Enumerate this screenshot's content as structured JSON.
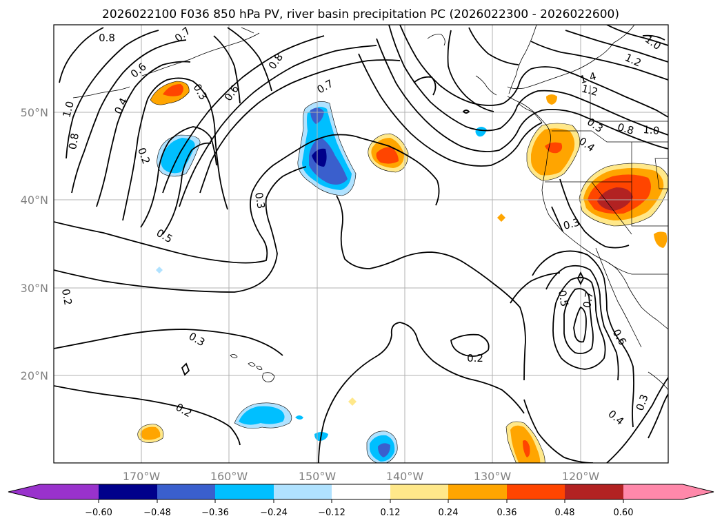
{
  "chart_data": {
    "type": "contour_map",
    "title": "2026022100 F036 850 hPa PV, river basin precipitation PC (2026022300 - 2026022600)",
    "map": {
      "lon_range": [
        -180,
        -110
      ],
      "lat_range": [
        10,
        60
      ],
      "lat_ticks": [
        {
          "value": 20,
          "label": "20°N"
        },
        {
          "value": 30,
          "label": "30°N"
        },
        {
          "value": 40,
          "label": "40°N"
        },
        {
          "value": 50,
          "label": "50°N"
        }
      ],
      "lon_ticks": [
        {
          "value": -170,
          "label": "170°W"
        },
        {
          "value": -160,
          "label": "160°W"
        },
        {
          "value": -150,
          "label": "150°W"
        },
        {
          "value": -140,
          "label": "140°W"
        },
        {
          "value": -130,
          "label": "130°W"
        },
        {
          "value": -120,
          "label": "120°W"
        }
      ]
    },
    "colorbar": {
      "levels": [
        -0.6,
        -0.48,
        -0.36,
        -0.24,
        -0.12,
        0.12,
        0.24,
        0.36,
        0.48,
        0.6
      ],
      "tick_labels": [
        "−0.60",
        "−0.48",
        "−0.36",
        "−0.24",
        "−0.12",
        "0.12",
        "0.24",
        "0.36",
        "0.48",
        "0.60"
      ],
      "colors": [
        "#9932cc",
        "#00008b",
        "#3a5fcd",
        "#00bfff",
        "#b0e2ff",
        "#ffffff",
        "#ffe88a",
        "#ffa500",
        "#ff4500",
        "#b22222",
        "#ff88aa"
      ],
      "extend": "both"
    },
    "contour_labels": [
      "0.8",
      "0.7",
      "0.6",
      "0.3",
      "0.8",
      "0.6",
      "1.0",
      "0.4",
      "0.8",
      "0.2",
      "0.7",
      "0.5",
      "0.3",
      "1.0",
      "1.2",
      "1.4",
      "1.2",
      "0.3",
      "0.8",
      "1.0",
      "0.4",
      "0.3",
      "0.2",
      "0.3",
      "0.2",
      "0.2",
      "0.5",
      "0.7",
      "0.6",
      "0.4",
      "0.3"
    ],
    "precip_anomalies": [
      {
        "region": "Gulf of Alaska west",
        "sign": "positive",
        "peak": 0.36
      },
      {
        "region": "North Pacific 165W 45N",
        "sign": "negative",
        "peak": -0.36
      },
      {
        "region": "North Pacific 150W 45N",
        "sign": "negative",
        "peak": -0.6
      },
      {
        "region": "North Pacific 142W 45N",
        "sign": "positive",
        "peak": 0.36
      },
      {
        "region": "Pacific Northwest",
        "sign": "positive",
        "peak": 0.36
      },
      {
        "region": "Northern California / Nevada",
        "sign": "positive",
        "peak": 0.48
      },
      {
        "region": "Hawaii",
        "sign": "negative",
        "peak": -0.36
      },
      {
        "region": "Tropical Pacific 142W 13N",
        "sign": "negative",
        "peak": -0.48
      },
      {
        "region": "Tropical Pacific 126W 13N",
        "sign": "positive",
        "peak": 0.36
      },
      {
        "region": "Tropical Pacific 168W 13N",
        "sign": "positive",
        "peak": 0.24
      }
    ]
  }
}
